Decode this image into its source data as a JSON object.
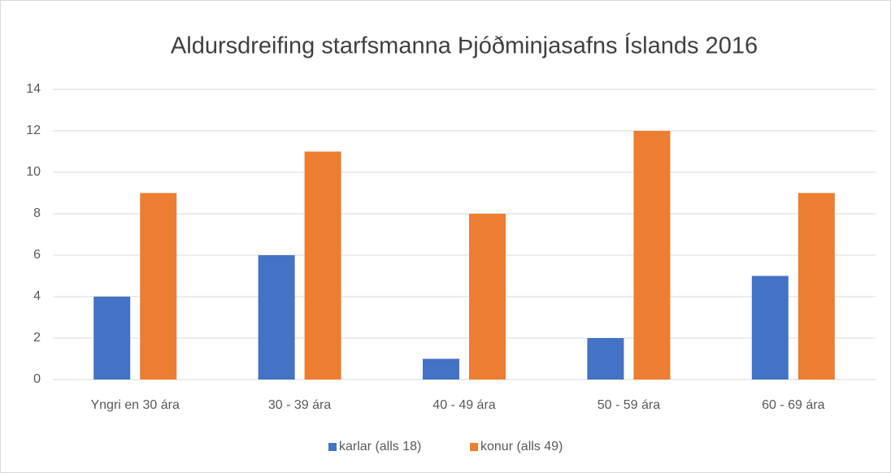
{
  "chart_data": {
    "type": "bar",
    "title": "Aldursdreifing starfsmanna Þjóðminjasafns Íslands 2016",
    "categories": [
      "Yngri en 30 ára",
      "30 - 39 ára",
      "40 - 49 ára",
      "50 - 59 ára",
      "60 - 69 ára"
    ],
    "series": [
      {
        "name": "karlar (alls 18)",
        "color": "#4472c4",
        "values": [
          4,
          6,
          1,
          2,
          5
        ]
      },
      {
        "name": "konur (alls 49)",
        "color": "#ed7d31",
        "values": [
          9,
          11,
          8,
          12,
          9
        ]
      }
    ],
    "ylim": [
      0,
      14
    ],
    "yticks": [
      0,
      2,
      4,
      6,
      8,
      10,
      12,
      14
    ],
    "grid": true,
    "legend": "bottom"
  }
}
